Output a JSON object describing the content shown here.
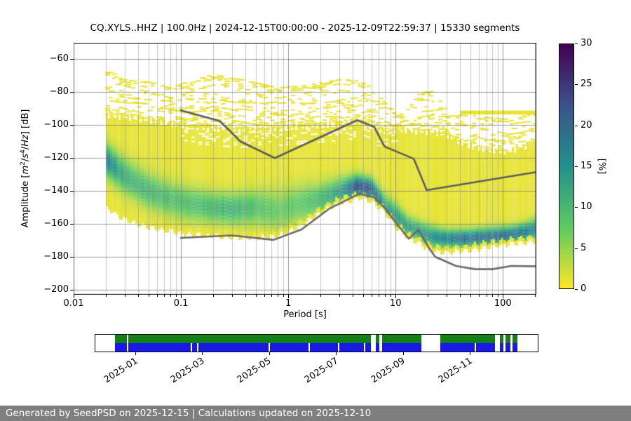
{
  "title": "CQ.XYLS..HHZ | 100.0Hz | 2024-12-15T00:00:00 - 2025-12-09T22:59:37 | 15330 segments",
  "footer": {
    "text": "Generated by SeedPSD on 2025-12-15 | Calculations updated on 2025-12-10",
    "bg_color": "#7f7f7f"
  },
  "axes": {
    "x": {
      "label": "Period [s]",
      "scale": "log",
      "min": 0.01,
      "max": 205,
      "ticks": [
        {
          "v": 0.01,
          "label": "0.01"
        },
        {
          "v": 0.1,
          "label": "0.1"
        },
        {
          "v": 1,
          "label": "1"
        },
        {
          "v": 10,
          "label": "10"
        },
        {
          "v": 100,
          "label": "100"
        }
      ]
    },
    "y": {
      "label_parts": [
        "Amplitude [",
        "m",
        "2",
        "/",
        "s",
        "4",
        "/",
        "Hz",
        "] [dB]"
      ],
      "min": -203,
      "max": -50,
      "ticks": [
        {
          "v": -60,
          "label": "−60"
        },
        {
          "v": -80,
          "label": "−80"
        },
        {
          "v": -100,
          "label": "−100"
        },
        {
          "v": -120,
          "label": "−120"
        },
        {
          "v": -140,
          "label": "−140"
        },
        {
          "v": -160,
          "label": "−160"
        },
        {
          "v": -180,
          "label": "−180"
        },
        {
          "v": -200,
          "label": "−200"
        }
      ]
    }
  },
  "colorbar": {
    "label": "[%]",
    "min": 0,
    "max": 30,
    "ticks": [
      0,
      5,
      10,
      15,
      20,
      25,
      30
    ],
    "stops": [
      "#fde725",
      "#5ec962",
      "#21918c",
      "#3b528b",
      "#440154"
    ]
  },
  "chart_data": {
    "type": "heatmap",
    "description": "Probabilistic power spectral density (PPSD): probability [%] of PSD amplitude vs period, viridis_r colormap (yellow=0%, dark=30%), with high/low reference noise model curves in gray",
    "xlim": [
      0.01,
      205
    ],
    "ylim": [
      -203,
      -50
    ],
    "grid": {
      "major_color": "rgba(120,120,120,0.75)",
      "minor_color": "rgba(150,150,150,0.55)"
    },
    "ppsd": {
      "data_period_start": 0.02,
      "periods": [
        0.02,
        0.03,
        0.05,
        0.08,
        0.12,
        0.2,
        0.3,
        0.5,
        0.8,
        1.3,
        2,
        3,
        4.5,
        6,
        8,
        10.5,
        13,
        17,
        22,
        30,
        45,
        70,
        110,
        160,
        205
      ],
      "env_top_db": [
        -66,
        -72,
        -74,
        -77,
        -73,
        -69,
        -71,
        -74,
        -77,
        -76,
        -74,
        -72,
        -73,
        -76,
        -86,
        -94,
        -91,
        -80,
        -79,
        -95,
        -93,
        -95,
        -96,
        -94,
        -92
      ],
      "top_db": [
        -94,
        -95,
        -97,
        -99,
        -101,
        -102,
        -103,
        -103,
        -102,
        -101,
        -100,
        -99,
        -97.5,
        -101,
        -104,
        -103,
        -103,
        -104,
        -104,
        -106,
        -112,
        -115,
        -116,
        -113,
        -110
      ],
      "mode_db": [
        -121,
        -131,
        -140,
        -145,
        -148,
        -150,
        -151,
        -150,
        -152,
        -148,
        -145,
        -141,
        -137,
        -139,
        -150,
        -156,
        -162,
        -165,
        -168,
        -169,
        -169,
        -168,
        -167,
        -165,
        -163
      ],
      "halfwidth_db": [
        9,
        10,
        10,
        10,
        10,
        9,
        9,
        10,
        12,
        11,
        9,
        8,
        6,
        6,
        7,
        7,
        6,
        6,
        6,
        5,
        5,
        5,
        5,
        5,
        6
      ],
      "peak_pct": [
        16,
        10,
        9,
        8,
        8,
        9,
        10,
        8,
        6,
        7,
        9,
        12,
        22,
        20,
        12,
        12,
        12,
        12,
        14,
        16,
        18,
        18,
        18,
        17,
        15
      ],
      "bottom_db": [
        -150,
        -157,
        -162,
        -164,
        -166,
        -167,
        -168,
        -168,
        -167,
        -161,
        -153,
        -147,
        -144,
        -146,
        -153,
        -163,
        -168,
        -172,
        -176,
        -177,
        -176,
        -174,
        -172,
        -171,
        -170
      ],
      "solid_band": {
        "p_range": [
          40,
          205
        ],
        "db_range": [
          -93.5,
          -91.2
        ]
      }
    },
    "noise_models": {
      "high": {
        "color": "#5d5d5d",
        "width": 2.6,
        "points": [
          [
            0.1,
            -91
          ],
          [
            0.23,
            -97.5
          ],
          [
            0.36,
            -110
          ],
          [
            0.75,
            -120
          ],
          [
            4.4,
            -97
          ],
          [
            6.3,
            -101
          ],
          [
            7.9,
            -113
          ],
          [
            14.8,
            -120.5
          ],
          [
            19.5,
            -139.5
          ],
          [
            205,
            -128.5
          ]
        ]
      },
      "low": {
        "color": "#6a6a6a",
        "width": 2.6,
        "points": [
          [
            0.1,
            -168.5
          ],
          [
            0.3,
            -167
          ],
          [
            0.73,
            -169.7
          ],
          [
            1.33,
            -163.4
          ],
          [
            2.43,
            -150.6
          ],
          [
            4.6,
            -141.7
          ],
          [
            6.3,
            -143.8
          ],
          [
            7.9,
            -150.2
          ],
          [
            10.5,
            -160.8
          ],
          [
            13.3,
            -169
          ],
          [
            16.4,
            -163.5
          ],
          [
            20.6,
            -175
          ],
          [
            23.4,
            -180
          ],
          [
            36.5,
            -185.5
          ],
          [
            55,
            -187.5
          ],
          [
            80,
            -187.5
          ],
          [
            120,
            -185.5
          ],
          [
            205,
            -185.8
          ]
        ]
      }
    }
  },
  "timeline": {
    "rows": [
      {
        "name": "data-coverage-green",
        "color": "#128012",
        "segments": [
          [
            0.045,
            0.0713
          ],
          [
            0.0745,
            0.623
          ],
          [
            0.634,
            0.642
          ],
          [
            0.648,
            0.737
          ],
          [
            0.78,
            0.903
          ],
          [
            0.914,
            0.922
          ],
          [
            0.927,
            0.938
          ],
          [
            0.943,
            0.954
          ]
        ]
      },
      {
        "name": "psd-coverage-blue",
        "color": "#1a1ae6",
        "segments": [
          [
            0.045,
            0.0713
          ],
          [
            0.0745,
            0.216
          ],
          [
            0.2185,
            0.2295
          ],
          [
            0.233,
            0.392
          ],
          [
            0.395,
            0.482
          ],
          [
            0.4845,
            0.549
          ],
          [
            0.5515,
            0.6075
          ],
          [
            0.6095,
            0.623
          ],
          [
            0.634,
            0.642
          ],
          [
            0.648,
            0.737
          ],
          [
            0.78,
            0.858
          ],
          [
            0.86,
            0.903
          ],
          [
            0.914,
            0.922
          ],
          [
            0.927,
            0.938
          ],
          [
            0.943,
            0.954
          ]
        ]
      }
    ],
    "ticks": [
      {
        "f": 0.092,
        "label": "2025-01"
      },
      {
        "f": 0.243,
        "label": "2025-03"
      },
      {
        "f": 0.394,
        "label": "2025-05"
      },
      {
        "f": 0.545,
        "label": "2025-07"
      },
      {
        "f": 0.697,
        "label": "2025-09"
      },
      {
        "f": 0.848,
        "label": "2025-11"
      }
    ]
  }
}
